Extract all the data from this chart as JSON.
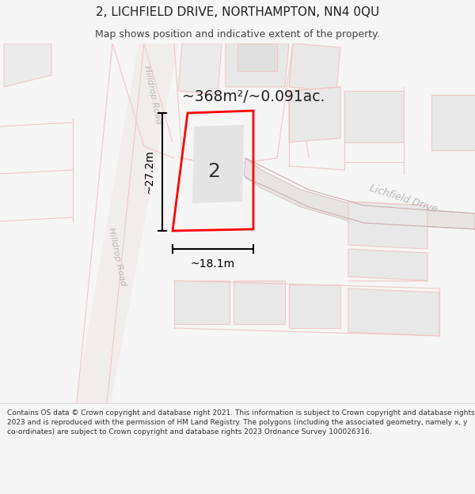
{
  "title": "2, LICHFIELD DRIVE, NORTHAMPTON, NN4 0QU",
  "subtitle": "Map shows position and indicative extent of the property.",
  "area_text": "~368m²/~0.091ac.",
  "width_label": "~18.1m",
  "height_label": "~27.2m",
  "property_number": "2",
  "road_label_1": "Lichfield Drive",
  "road_label_2": "Hilldrop Road",
  "road_label_3": "Hilldrop Road",
  "footer": "Contains OS data © Crown copyright and database right 2021. This information is subject to Crown copyright and database rights 2023 and is reproduced with the permission of HM Land Registry. The polygons (including the associated geometry, namely x, y co-ordinates) are subject to Crown copyright and database rights 2023 Ordnance Survey 100026316.",
  "bg_color": "#f5f5f5",
  "map_bg": "#ffffff",
  "road_fill": "#e8e0e0",
  "road_edge": "#d4b0b0",
  "pink": "#f0b0b0",
  "pink_light": "#f0c8c8",
  "gray_block": "#e4e4e4",
  "gray_block2": "#d8d8d8",
  "property_outline": "#ff0000",
  "dim_color": "#000000",
  "road_label_color": "#b8b8b8",
  "title_fontsize": 11,
  "subtitle_fontsize": 9,
  "footer_fontsize": 6.5
}
